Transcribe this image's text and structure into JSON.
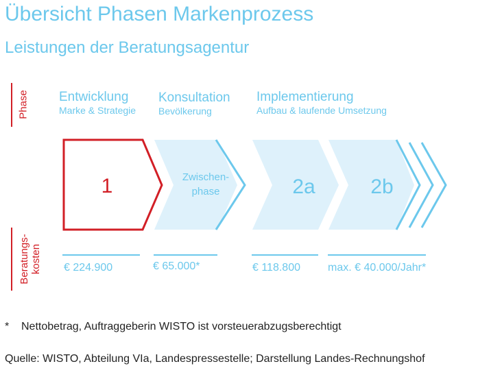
{
  "colors": {
    "red": "#d21f26",
    "light": "#6cc8ec",
    "fill": "#def1fb",
    "text": "#222222"
  },
  "title": "Übersicht Phasen Markenprozess",
  "subtitle": "Leistungen der Beratungsagentur",
  "side_labels": {
    "phase": "Phase",
    "costs_line1": "Beratungs-",
    "costs_line2": "kosten"
  },
  "phases": [
    {
      "title": "Entwicklung",
      "subtitle": "Marke & Strategie"
    },
    {
      "title": "Konsultation",
      "subtitle": "Bevölkerung"
    },
    {
      "title": "Implementierung",
      "subtitle": "Aufbau & laufende Umsetzung"
    }
  ],
  "steps": {
    "step1": "1",
    "interim_line1": "Zwischen-",
    "interim_line2": "phase",
    "step2a": "2a",
    "step2b": "2b"
  },
  "costs": [
    "€ 224.900",
    "€ 65.000*",
    "€ 118.800",
    "max. € 40.000/Jahr*"
  ],
  "footnote": {
    "mark": "*",
    "text": "Nettobetrag, Auftraggeberin WISTO ist vorsteuerabzugsberechtigt"
  },
  "source": "Quelle: WISTO, Abteilung VIa, Landespressestelle; Darstellung Landes-Rechnungshof"
}
